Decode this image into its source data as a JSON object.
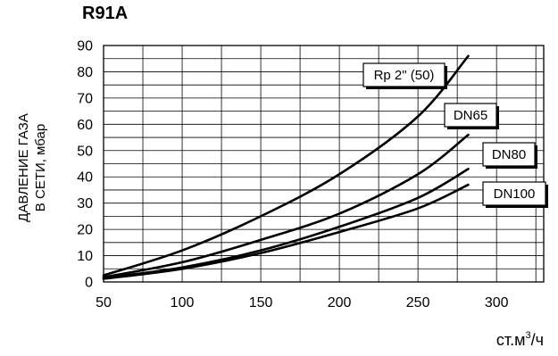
{
  "chart_data": {
    "type": "line",
    "title": "R91A",
    "ylabel_line1": "ДАВЛЕНИЕ ГАЗА",
    "ylabel_line2": "В СЕТИ, мбар",
    "xlabel_main": "ст.м",
    "xlabel_sup": "3",
    "xlabel_tail": "/ч",
    "xlim": [
      50,
      330
    ],
    "ylim": [
      0,
      90
    ],
    "x_ticks": [
      50,
      100,
      150,
      200,
      250,
      300
    ],
    "y_ticks": [
      0,
      10,
      20,
      30,
      40,
      50,
      60,
      70,
      80,
      90
    ],
    "x_grid_step": 25,
    "y_grid_step": 5,
    "grid": true,
    "series": [
      {
        "name": "Rp 2\" (50)",
        "label_pos": "top-right",
        "points": [
          [
            50,
            2.5
          ],
          [
            100,
            12
          ],
          [
            150,
            25
          ],
          [
            200,
            41
          ],
          [
            250,
            63
          ],
          [
            282,
            86
          ]
        ]
      },
      {
        "name": "DN65",
        "label_pos": "right",
        "points": [
          [
            50,
            1.8
          ],
          [
            100,
            7.5
          ],
          [
            150,
            16
          ],
          [
            200,
            26
          ],
          [
            250,
            41
          ],
          [
            282,
            56
          ]
        ]
      },
      {
        "name": "DN80",
        "label_pos": "right",
        "points": [
          [
            50,
            1.5
          ],
          [
            100,
            5.5
          ],
          [
            150,
            12
          ],
          [
            200,
            21
          ],
          [
            250,
            32
          ],
          [
            282,
            43
          ]
        ]
      },
      {
        "name": "DN100",
        "label_pos": "bottom-right",
        "points": [
          [
            50,
            1.2
          ],
          [
            100,
            5
          ],
          [
            150,
            11
          ],
          [
            200,
            19
          ],
          [
            250,
            28
          ],
          [
            282,
            37
          ]
        ]
      }
    ]
  }
}
